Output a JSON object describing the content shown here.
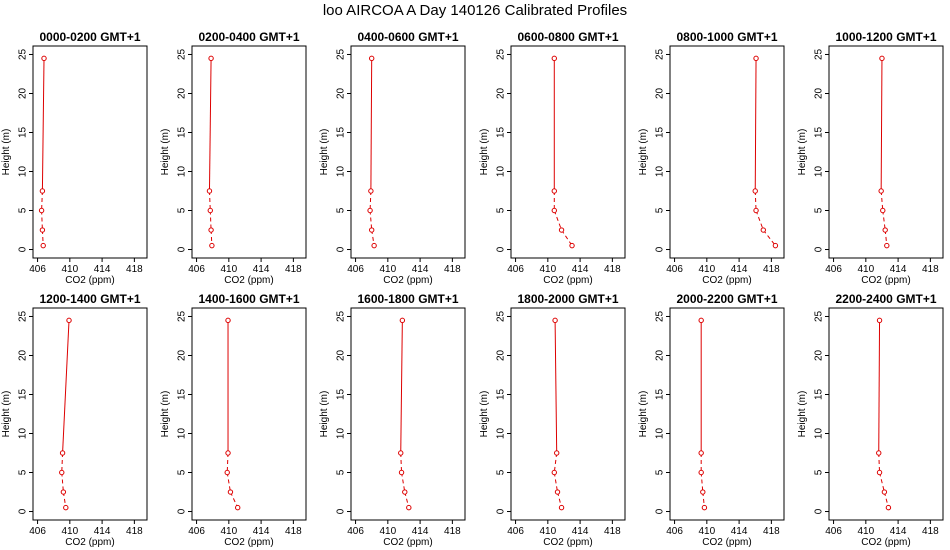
{
  "page": {
    "title": "loo AIRCOA A  Day 140126  Calibrated Profiles"
  },
  "colors": {
    "series": "#dd0000",
    "axis": "#000000",
    "background": "#ffffff"
  },
  "chart_data": [
    {
      "type": "line",
      "title": "0000-0200 GMT+1",
      "xlabel": "CO2 (ppm)",
      "ylabel": "Height (m)",
      "xlim": [
        406,
        419
      ],
      "ylim": [
        0,
        25
      ],
      "xticks": [
        "406",
        "410",
        "414",
        "418"
      ],
      "yticks": [
        "0",
        "5",
        "10",
        "15",
        "20",
        "25"
      ],
      "points": [
        {
          "x": 406.8,
          "y": 24.5
        },
        {
          "x": 406.6,
          "y": 7.5
        },
        {
          "x": 406.5,
          "y": 5.0
        },
        {
          "x": 406.6,
          "y": 2.5
        },
        {
          "x": 406.7,
          "y": 0.5
        }
      ]
    },
    {
      "type": "line",
      "title": "0200-0400 GMT+1",
      "xlabel": "CO2 (ppm)",
      "ylabel": "Height (m)",
      "xlim": [
        406,
        419
      ],
      "ylim": [
        0,
        25
      ],
      "xticks": [
        "406",
        "410",
        "414",
        "418"
      ],
      "yticks": [
        "0",
        "5",
        "10",
        "15",
        "20",
        "25"
      ],
      "points": [
        {
          "x": 407.8,
          "y": 24.5
        },
        {
          "x": 407.6,
          "y": 7.5
        },
        {
          "x": 407.7,
          "y": 5.0
        },
        {
          "x": 407.8,
          "y": 2.5
        },
        {
          "x": 407.9,
          "y": 0.5
        }
      ]
    },
    {
      "type": "line",
      "title": "0400-0600 GMT+1",
      "xlabel": "CO2 (ppm)",
      "ylabel": "Height (m)",
      "xlim": [
        406,
        419
      ],
      "ylim": [
        0,
        25
      ],
      "xticks": [
        "406",
        "410",
        "414",
        "418"
      ],
      "yticks": [
        "0",
        "5",
        "10",
        "15",
        "20",
        "25"
      ],
      "points": [
        {
          "x": 408.0,
          "y": 24.5
        },
        {
          "x": 407.9,
          "y": 7.5
        },
        {
          "x": 407.8,
          "y": 5.0
        },
        {
          "x": 408.0,
          "y": 2.5
        },
        {
          "x": 408.3,
          "y": 0.5
        }
      ]
    },
    {
      "type": "line",
      "title": "0600-0800 GMT+1",
      "xlabel": "CO2 (ppm)",
      "ylabel": "Height (m)",
      "xlim": [
        406,
        419
      ],
      "ylim": [
        0,
        25
      ],
      "xticks": [
        "406",
        "410",
        "414",
        "418"
      ],
      "yticks": [
        "0",
        "5",
        "10",
        "15",
        "20",
        "25"
      ],
      "points": [
        {
          "x": 410.8,
          "y": 24.5
        },
        {
          "x": 410.8,
          "y": 7.5
        },
        {
          "x": 410.8,
          "y": 5.0
        },
        {
          "x": 411.7,
          "y": 2.5
        },
        {
          "x": 413.0,
          "y": 0.5
        }
      ]
    },
    {
      "type": "line",
      "title": "0800-1000 GMT+1",
      "xlabel": "CO2 (ppm)",
      "ylabel": "Height (m)",
      "xlim": [
        406,
        419
      ],
      "ylim": [
        0,
        25
      ],
      "xticks": [
        "406",
        "410",
        "414",
        "418"
      ],
      "yticks": [
        "0",
        "5",
        "10",
        "15",
        "20",
        "25"
      ],
      "points": [
        {
          "x": 416.1,
          "y": 24.5
        },
        {
          "x": 416.0,
          "y": 7.5
        },
        {
          "x": 416.1,
          "y": 5.0
        },
        {
          "x": 417.0,
          "y": 2.5
        },
        {
          "x": 418.5,
          "y": 0.5
        }
      ]
    },
    {
      "type": "line",
      "title": "1000-1200 GMT+1",
      "xlabel": "CO2 (ppm)",
      "ylabel": "Height (m)",
      "xlim": [
        406,
        419
      ],
      "ylim": [
        0,
        25
      ],
      "xticks": [
        "406",
        "410",
        "414",
        "418"
      ],
      "yticks": [
        "0",
        "5",
        "10",
        "15",
        "20",
        "25"
      ],
      "points": [
        {
          "x": 412.0,
          "y": 24.5
        },
        {
          "x": 411.9,
          "y": 7.5
        },
        {
          "x": 412.1,
          "y": 5.0
        },
        {
          "x": 412.4,
          "y": 2.5
        },
        {
          "x": 412.6,
          "y": 0.5
        }
      ]
    },
    {
      "type": "line",
      "title": "1200-1400 GMT+1",
      "xlabel": "CO2 (ppm)",
      "ylabel": "Height (m)",
      "xlim": [
        406,
        419
      ],
      "ylim": [
        0,
        25
      ],
      "xticks": [
        "406",
        "410",
        "414",
        "418"
      ],
      "yticks": [
        "0",
        "5",
        "10",
        "15",
        "20",
        "25"
      ],
      "points": [
        {
          "x": 409.9,
          "y": 24.5
        },
        {
          "x": 409.1,
          "y": 7.5
        },
        {
          "x": 409.0,
          "y": 5.0
        },
        {
          "x": 409.2,
          "y": 2.5
        },
        {
          "x": 409.5,
          "y": 0.5
        }
      ]
    },
    {
      "type": "line",
      "title": "1400-1600 GMT+1",
      "xlabel": "CO2 (ppm)",
      "ylabel": "Height (m)",
      "xlim": [
        406,
        419
      ],
      "ylim": [
        0,
        25
      ],
      "xticks": [
        "406",
        "410",
        "414",
        "418"
      ],
      "yticks": [
        "0",
        "5",
        "10",
        "15",
        "20",
        "25"
      ],
      "points": [
        {
          "x": 409.9,
          "y": 24.5
        },
        {
          "x": 409.9,
          "y": 7.5
        },
        {
          "x": 409.8,
          "y": 5.0
        },
        {
          "x": 410.2,
          "y": 2.5
        },
        {
          "x": 411.1,
          "y": 0.5
        }
      ]
    },
    {
      "type": "line",
      "title": "1600-1800 GMT+1",
      "xlabel": "CO2 (ppm)",
      "ylabel": "Height (m)",
      "xlim": [
        406,
        419
      ],
      "ylim": [
        0,
        25
      ],
      "xticks": [
        "406",
        "410",
        "414",
        "418"
      ],
      "yticks": [
        "0",
        "5",
        "10",
        "15",
        "20",
        "25"
      ],
      "points": [
        {
          "x": 411.8,
          "y": 24.5
        },
        {
          "x": 411.6,
          "y": 7.5
        },
        {
          "x": 411.7,
          "y": 5.0
        },
        {
          "x": 412.1,
          "y": 2.5
        },
        {
          "x": 412.6,
          "y": 0.5
        }
      ]
    },
    {
      "type": "line",
      "title": "1800-2000 GMT+1",
      "xlabel": "CO2 (ppm)",
      "ylabel": "Height (m)",
      "xlim": [
        406,
        419
      ],
      "ylim": [
        0,
        25
      ],
      "xticks": [
        "406",
        "410",
        "414",
        "418"
      ],
      "yticks": [
        "0",
        "5",
        "10",
        "15",
        "20",
        "25"
      ],
      "points": [
        {
          "x": 410.9,
          "y": 24.5
        },
        {
          "x": 411.1,
          "y": 7.5
        },
        {
          "x": 410.8,
          "y": 5.0
        },
        {
          "x": 411.2,
          "y": 2.5
        },
        {
          "x": 411.7,
          "y": 0.5
        }
      ]
    },
    {
      "type": "line",
      "title": "2000-2200 GMT+1",
      "xlabel": "CO2 (ppm)",
      "ylabel": "Height (m)",
      "xlim": [
        406,
        419
      ],
      "ylim": [
        0,
        25
      ],
      "xticks": [
        "406",
        "410",
        "414",
        "418"
      ],
      "yticks": [
        "0",
        "5",
        "10",
        "15",
        "20",
        "25"
      ],
      "points": [
        {
          "x": 409.3,
          "y": 24.5
        },
        {
          "x": 409.3,
          "y": 7.5
        },
        {
          "x": 409.3,
          "y": 5.0
        },
        {
          "x": 409.5,
          "y": 2.5
        },
        {
          "x": 409.7,
          "y": 0.5
        }
      ]
    },
    {
      "type": "line",
      "title": "2200-2400 GMT+1",
      "xlabel": "CO2 (ppm)",
      "ylabel": "Height (m)",
      "xlim": [
        406,
        419
      ],
      "ylim": [
        0,
        25
      ],
      "xticks": [
        "406",
        "410",
        "414",
        "418"
      ],
      "yticks": [
        "0",
        "5",
        "10",
        "15",
        "20",
        "25"
      ],
      "points": [
        {
          "x": 411.7,
          "y": 24.5
        },
        {
          "x": 411.6,
          "y": 7.5
        },
        {
          "x": 411.7,
          "y": 5.0
        },
        {
          "x": 412.3,
          "y": 2.5
        },
        {
          "x": 412.8,
          "y": 0.5
        }
      ]
    }
  ]
}
